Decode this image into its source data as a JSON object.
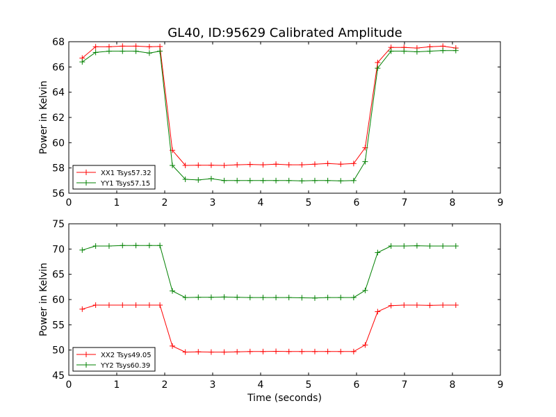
{
  "chart_data": [
    {
      "type": "line",
      "title": "GL40, ID:95629 Calibrated Amplitude",
      "xlabel": "",
      "ylabel": "Power in Kelvin",
      "xlim": [
        0,
        9
      ],
      "ylim": [
        56,
        68
      ],
      "xticks": [
        0,
        1,
        2,
        3,
        4,
        5,
        6,
        7,
        8,
        9
      ],
      "yticks": [
        56,
        58,
        60,
        62,
        64,
        66,
        68
      ],
      "grid": false,
      "legend": "lower-left",
      "x": [
        0.28,
        0.56,
        0.84,
        1.12,
        1.4,
        1.68,
        1.9,
        2.16,
        2.43,
        2.7,
        2.97,
        3.24,
        3.51,
        3.78,
        4.05,
        4.32,
        4.59,
        4.86,
        5.13,
        5.4,
        5.67,
        5.94,
        6.18,
        6.44,
        6.72,
        6.99,
        7.26,
        7.53,
        7.8,
        8.07
      ],
      "series": [
        {
          "name": "XX1 Tsys57.32",
          "color": "#ff0000",
          "values": [
            66.7,
            67.6,
            67.6,
            67.65,
            67.65,
            67.6,
            67.62,
            59.4,
            58.2,
            58.22,
            58.22,
            58.2,
            58.25,
            58.28,
            58.25,
            58.3,
            58.25,
            58.25,
            58.3,
            58.35,
            58.3,
            58.35,
            59.6,
            66.35,
            67.55,
            67.55,
            67.5,
            67.6,
            67.65,
            67.5
          ]
        },
        {
          "name": "YY1 Tsys57.15",
          "color": "#008000",
          "values": [
            66.4,
            67.15,
            67.25,
            67.25,
            67.25,
            67.1,
            67.25,
            58.2,
            57.1,
            57.05,
            57.15,
            57.0,
            57.0,
            57.0,
            57.0,
            57.0,
            57.0,
            56.98,
            57.0,
            57.0,
            56.98,
            57.0,
            58.5,
            65.9,
            67.25,
            67.25,
            67.2,
            67.25,
            67.3,
            67.3
          ]
        }
      ]
    },
    {
      "type": "line",
      "title": "",
      "xlabel": "Time (seconds)",
      "ylabel": "Power in Kelvin",
      "xlim": [
        0,
        9
      ],
      "ylim": [
        45,
        75
      ],
      "xticks": [
        0,
        1,
        2,
        3,
        4,
        5,
        6,
        7,
        8,
        9
      ],
      "yticks": [
        45,
        50,
        55,
        60,
        65,
        70,
        75
      ],
      "grid": false,
      "legend": "lower-left",
      "x": [
        0.28,
        0.56,
        0.84,
        1.12,
        1.4,
        1.68,
        1.9,
        2.16,
        2.43,
        2.7,
        2.97,
        3.24,
        3.51,
        3.78,
        4.05,
        4.32,
        4.59,
        4.86,
        5.13,
        5.4,
        5.67,
        5.94,
        6.18,
        6.44,
        6.72,
        6.99,
        7.26,
        7.53,
        7.8,
        8.07
      ],
      "series": [
        {
          "name": "XX2 Tsys49.05",
          "color": "#ff0000",
          "values": [
            58.1,
            58.9,
            58.9,
            58.9,
            58.9,
            58.9,
            58.9,
            50.8,
            49.6,
            49.65,
            49.6,
            49.6,
            49.65,
            49.7,
            49.7,
            49.75,
            49.7,
            49.7,
            49.7,
            49.72,
            49.7,
            49.7,
            51.0,
            57.6,
            58.8,
            58.9,
            58.9,
            58.85,
            58.9,
            58.9
          ]
        },
        {
          "name": "YY2 Tsys60.39",
          "color": "#008000",
          "values": [
            69.8,
            70.6,
            70.6,
            70.7,
            70.7,
            70.7,
            70.7,
            61.7,
            60.4,
            60.45,
            60.45,
            60.5,
            60.45,
            60.4,
            60.4,
            60.4,
            60.4,
            60.35,
            60.3,
            60.4,
            60.4,
            60.4,
            61.8,
            69.3,
            70.6,
            70.6,
            70.65,
            70.6,
            70.6,
            70.6
          ]
        }
      ]
    }
  ]
}
